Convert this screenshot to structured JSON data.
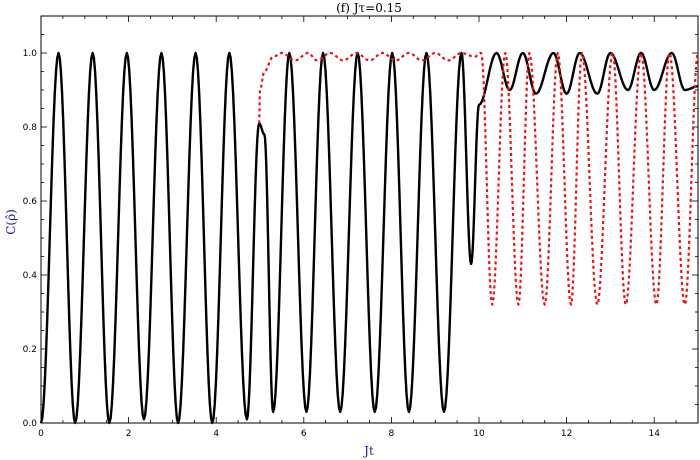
{
  "chart_data": {
    "type": "line",
    "title": "(f) Jτ=0.15",
    "xlabel": "Jt",
    "ylabel": "C(ρ̂)",
    "label_color": "#1a1aa6",
    "xlim": [
      0,
      15
    ],
    "ylim": [
      0,
      1.1
    ],
    "xticks": [
      0,
      2,
      4,
      6,
      8,
      10,
      12,
      14
    ],
    "xtick_labels": [
      "0",
      "2",
      "4",
      "6",
      "8",
      "10",
      "12",
      "14"
    ],
    "yticks": [
      0.0,
      0.2,
      0.4,
      0.6,
      0.8,
      1.0
    ],
    "ytick_labels": [
      "0.0",
      "0.2",
      "0.4",
      "0.6",
      "0.8",
      "1.0"
    ],
    "grid": false,
    "series": [
      {
        "style": "solid",
        "color": "#000000",
        "x": [
          0.0,
          0.4,
          0.78,
          1.18,
          1.56,
          1.96,
          2.35,
          2.75,
          3.13,
          3.53,
          3.91,
          4.3,
          4.7,
          4.98,
          5.1,
          5.3,
          5.67,
          6.06,
          6.44,
          6.83,
          7.23,
          7.62,
          8.02,
          8.4,
          8.8,
          9.2,
          9.6,
          9.82,
          10.0,
          10.4,
          10.7,
          11.0,
          11.3,
          11.7,
          12.0,
          12.3,
          12.7,
          13.0,
          13.4,
          13.7,
          14.0,
          14.4,
          14.7,
          15.0
        ],
        "y": [
          0.0,
          1.0,
          0.0,
          1.0,
          0.0,
          1.0,
          0.01,
          1.0,
          0.0,
          1.0,
          0.0,
          1.0,
          0.01,
          0.81,
          0.78,
          0.03,
          1.0,
          0.03,
          1.0,
          0.03,
          1.0,
          0.03,
          1.0,
          0.03,
          1.0,
          0.03,
          1.0,
          0.43,
          0.86,
          1.0,
          0.9,
          1.0,
          0.89,
          1.0,
          0.89,
          1.0,
          0.89,
          1.0,
          0.9,
          1.0,
          0.9,
          1.0,
          0.9,
          0.91
        ]
      },
      {
        "style": "dotted",
        "color": "#ee1111",
        "x": [
          4.98,
          5.0,
          5.1,
          5.3,
          5.5,
          5.8,
          6.1,
          6.3,
          6.6,
          6.9,
          7.2,
          7.5,
          7.8,
          8.1,
          8.4,
          8.7,
          9.0,
          9.3,
          9.6,
          9.9,
          10.05,
          10.3,
          10.6,
          10.9,
          11.15,
          11.5,
          11.8,
          12.1,
          12.35,
          12.7,
          13.05,
          13.35,
          13.7,
          14.05,
          14.35,
          14.7,
          15.0
        ],
        "y": [
          0.81,
          0.9,
          0.95,
          0.99,
          1.0,
          0.98,
          1.0,
          0.98,
          1.0,
          0.98,
          1.0,
          0.98,
          1.0,
          0.98,
          1.0,
          0.98,
          1.0,
          0.98,
          1.0,
          0.99,
          1.0,
          0.32,
          1.0,
          0.32,
          1.0,
          0.32,
          1.0,
          0.32,
          1.0,
          0.32,
          1.0,
          0.32,
          1.0,
          0.32,
          1.0,
          0.32,
          1.0
        ]
      }
    ]
  }
}
